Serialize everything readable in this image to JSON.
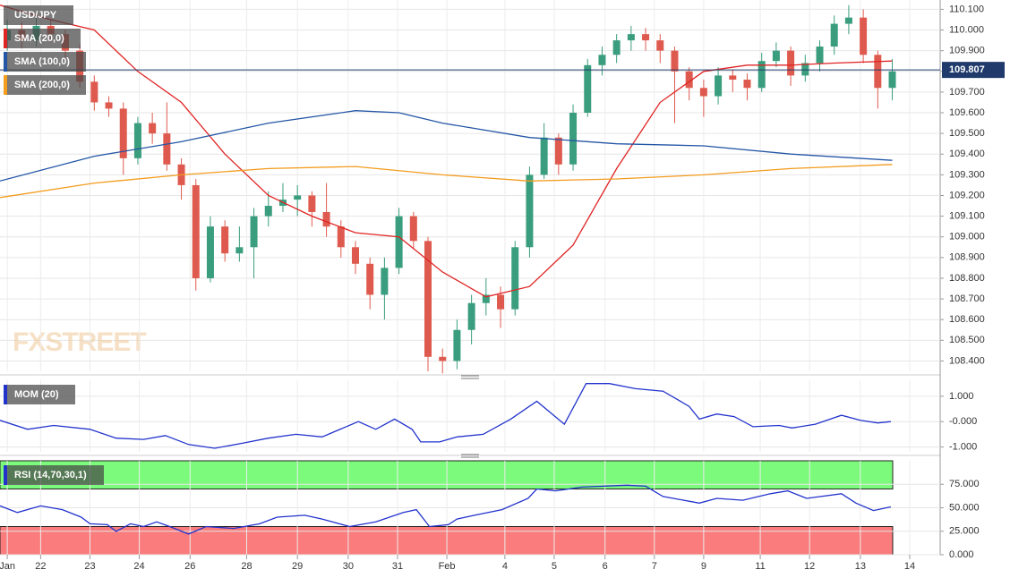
{
  "chart_data": [
    {
      "type": "candlestick",
      "name": "USD/JPY",
      "up_color": "#3a9d7e",
      "down_color": "#df5a4e",
      "grid": true,
      "xlim": [
        -0.5,
        64.3
      ],
      "ylim": [
        108.35,
        110.145
      ],
      "watermark": "FXSTREET",
      "last_price": 109.807,
      "last_price_color": "#1f3a6b",
      "open": [
        109.95,
        110.0,
        109.95,
        110.02,
        109.98,
        109.9,
        109.75,
        109.65,
        109.62,
        109.38,
        109.55,
        109.5,
        109.35,
        109.25,
        108.8,
        109.05,
        108.92,
        108.95,
        109.1,
        109.15,
        109.18,
        109.2,
        109.12,
        109.05,
        108.95,
        108.87,
        108.72,
        108.85,
        109.1,
        108.98,
        108.42,
        108.4,
        108.55,
        108.68,
        108.72,
        108.65,
        108.95,
        109.3,
        109.48,
        109.35,
        109.6,
        109.83,
        109.88,
        109.95,
        109.98,
        109.95,
        109.9,
        109.8,
        109.72,
        109.68,
        109.78,
        109.76,
        109.72,
        109.85,
        109.9,
        109.78,
        109.84,
        109.92,
        110.03,
        110.06,
        109.88,
        109.72
      ],
      "high": [
        110.05,
        110.04,
        110.07,
        110.05,
        110.0,
        109.93,
        109.78,
        109.68,
        109.65,
        109.58,
        109.6,
        109.65,
        109.38,
        109.28,
        109.1,
        109.08,
        109.05,
        109.14,
        109.22,
        109.26,
        109.25,
        109.22,
        109.26,
        109.08,
        108.98,
        108.9,
        108.9,
        109.14,
        109.12,
        109.0,
        108.46,
        108.6,
        108.72,
        108.8,
        108.76,
        108.98,
        109.34,
        109.55,
        109.5,
        109.64,
        109.86,
        109.92,
        109.98,
        110.02,
        110.01,
        109.98,
        109.92,
        109.82,
        109.76,
        109.82,
        109.81,
        109.79,
        109.89,
        109.94,
        109.92,
        109.88,
        109.95,
        110.07,
        110.12,
        110.1,
        109.9,
        109.86
      ],
      "low": [
        109.9,
        109.91,
        109.92,
        109.94,
        109.86,
        109.72,
        109.61,
        109.58,
        109.3,
        109.35,
        109.45,
        109.32,
        109.18,
        108.74,
        108.78,
        108.88,
        108.88,
        108.8,
        109.05,
        109.12,
        109.1,
        109.05,
        109.0,
        108.9,
        108.82,
        108.65,
        108.6,
        108.82,
        108.94,
        108.35,
        108.34,
        108.36,
        108.48,
        108.62,
        108.56,
        108.62,
        108.9,
        109.28,
        109.3,
        109.32,
        109.58,
        109.78,
        109.84,
        109.9,
        109.9,
        109.84,
        109.55,
        109.66,
        109.58,
        109.64,
        109.7,
        109.66,
        109.7,
        109.82,
        109.73,
        109.75,
        109.8,
        109.88,
        109.98,
        109.84,
        109.62,
        109.66
      ],
      "close": [
        110.0,
        109.95,
        110.02,
        109.98,
        109.9,
        109.75,
        109.65,
        109.62,
        109.38,
        109.55,
        109.5,
        109.35,
        109.25,
        108.8,
        109.05,
        108.92,
        108.95,
        109.1,
        109.15,
        109.18,
        109.2,
        109.12,
        109.05,
        108.95,
        108.87,
        108.72,
        108.85,
        109.1,
        108.98,
        108.42,
        108.4,
        108.55,
        108.68,
        108.72,
        108.65,
        108.95,
        109.3,
        109.48,
        109.35,
        109.6,
        109.83,
        109.88,
        109.95,
        109.98,
        109.95,
        109.9,
        109.8,
        109.72,
        109.68,
        109.78,
        109.76,
        109.72,
        109.85,
        109.9,
        109.78,
        109.84,
        109.92,
        110.03,
        110.06,
        109.88,
        109.72,
        109.8
      ],
      "series": [
        {
          "name": "SMA (20,0)",
          "color": "#e02424",
          "x": [
            -0.5,
            3,
            6,
            9,
            12,
            15,
            18,
            21,
            24,
            27,
            30,
            33,
            36,
            39,
            42,
            45,
            48,
            51,
            54,
            57,
            61
          ],
          "values": [
            110.12,
            110.05,
            110.0,
            109.8,
            109.65,
            109.4,
            109.2,
            109.1,
            109.02,
            109.0,
            108.83,
            108.71,
            108.76,
            108.96,
            109.33,
            109.65,
            109.8,
            109.83,
            109.83,
            109.84,
            109.85
          ]
        },
        {
          "name": "SMA (100,0)",
          "color": "#2456a6",
          "x": [
            -0.5,
            6,
            12,
            18,
            24,
            27,
            30,
            36,
            42,
            48,
            54,
            61
          ],
          "values": [
            109.27,
            109.39,
            109.46,
            109.55,
            109.61,
            109.6,
            109.55,
            109.48,
            109.45,
            109.44,
            109.4,
            109.37
          ]
        },
        {
          "name": "SMA (200,0)",
          "color": "#f39c1e",
          "x": [
            -0.5,
            6,
            12,
            18,
            24,
            30,
            36,
            42,
            48,
            54,
            61
          ],
          "values": [
            109.19,
            109.26,
            109.3,
            109.33,
            109.34,
            109.3,
            109.27,
            109.28,
            109.3,
            109.33,
            109.35
          ]
        }
      ],
      "yticks": [
        {
          "value": 110.1,
          "label": "110.100"
        },
        {
          "value": 110.0,
          "label": "110.000"
        },
        {
          "value": 109.9,
          "label": "109.900"
        },
        {
          "value": 109.8,
          "label": "109.800"
        },
        {
          "value": 109.7,
          "label": "109.700"
        },
        {
          "value": 109.6,
          "label": "109.600"
        },
        {
          "value": 109.5,
          "label": "109.500"
        },
        {
          "value": 109.4,
          "label": "109.400"
        },
        {
          "value": 109.3,
          "label": "109.300"
        },
        {
          "value": 109.2,
          "label": "109.200"
        },
        {
          "value": 109.1,
          "label": "109.100"
        },
        {
          "value": 109.0,
          "label": "109.000"
        },
        {
          "value": 108.9,
          "label": "108.900"
        },
        {
          "value": 108.8,
          "label": "108.800"
        },
        {
          "value": 108.7,
          "label": "108.700"
        },
        {
          "value": 108.6,
          "label": "108.600"
        },
        {
          "value": 108.5,
          "label": "108.500"
        },
        {
          "value": 108.4,
          "label": "108.400"
        }
      ]
    },
    {
      "type": "line",
      "grid": true,
      "xlim": [
        -0.5,
        64.3
      ],
      "ylim": [
        -1.19,
        1.63
      ],
      "series": [
        {
          "name": "MOM (20)",
          "color": "#2233cc",
          "x": [
            -0.5,
            1.4,
            3.2,
            5.7,
            7.5,
            9.4,
            10.9,
            12.5,
            14.3,
            16.2,
            18,
            19.9,
            21.7,
            24.2,
            25.4,
            26.7,
            27.9,
            28.5,
            29.8,
            31,
            32.8,
            34.7,
            36.5,
            38.4,
            39.9,
            41.5,
            43.3,
            45.2,
            47,
            47.7,
            48.9,
            50.1,
            51.4,
            53.2,
            54.1,
            55.7,
            57.5,
            58.8,
            60,
            60.9
          ],
          "values": [
            0.05,
            -0.3,
            -0.15,
            -0.3,
            -0.65,
            -0.7,
            -0.55,
            -0.9,
            -1.05,
            -0.85,
            -0.65,
            -0.5,
            -0.6,
            0.0,
            -0.3,
            0.1,
            -0.3,
            -0.8,
            -0.8,
            -0.6,
            -0.5,
            0.1,
            0.8,
            -0.1,
            1.5,
            1.5,
            1.3,
            1.2,
            0.6,
            0.1,
            0.3,
            0.2,
            -0.2,
            -0.15,
            -0.25,
            -0.1,
            0.25,
            0.05,
            -0.05,
            0.0
          ]
        }
      ],
      "yticks": [
        {
          "value": 1,
          "label": "1.000"
        },
        {
          "value": 0,
          "label": "-0.000"
        },
        {
          "value": -1,
          "label": "-1.000"
        }
      ]
    },
    {
      "type": "line",
      "grid": true,
      "xlim": [
        -0.5,
        64.3
      ],
      "ylim": [
        0,
        100
      ],
      "overbought": 70,
      "oversold": 30,
      "overbought_color": "#7cfa7c",
      "oversold_color": "#fa7c7c",
      "series": [
        {
          "name": "RSI (14,70,30,1)",
          "color": "#2233cc",
          "x": [
            -0.5,
            0.7,
            2.3,
            3.8,
            5.1,
            5.7,
            6.9,
            7.5,
            8.5,
            9.4,
            10.3,
            11.2,
            12.5,
            13.7,
            15.6,
            17.4,
            18.6,
            20.5,
            21.7,
            23.6,
            25.4,
            27.3,
            28.2,
            29.1,
            30.4,
            31,
            32.2,
            34.1,
            35.9,
            36.5,
            37.8,
            39.6,
            42.7,
            44,
            45.2,
            47.7,
            48.9,
            50.7,
            52.6,
            53.8,
            55.1,
            57.5,
            58.5,
            59.7,
            60.9
          ],
          "values": [
            52,
            45,
            52,
            48,
            40,
            33,
            32,
            25,
            33,
            30,
            35,
            30,
            22,
            30,
            28,
            33,
            40,
            42,
            38,
            30,
            35,
            45,
            48,
            30,
            32,
            38,
            42,
            48,
            60,
            70,
            68,
            72,
            74,
            73,
            62,
            55,
            60,
            58,
            65,
            68,
            60,
            65,
            55,
            47,
            51
          ]
        }
      ],
      "yticks": [
        {
          "value": 75,
          "label": "75.000"
        },
        {
          "value": 50,
          "label": "50.000"
        },
        {
          "value": 25,
          "label": "25.000"
        },
        {
          "value": 0,
          "label": "0.000"
        }
      ],
      "xticks": [
        {
          "value": 0,
          "label": "Jan"
        },
        {
          "value": 2.3,
          "label": "22"
        },
        {
          "value": 5.7,
          "label": "23"
        },
        {
          "value": 9.1,
          "label": "24"
        },
        {
          "value": 12.6,
          "label": "26"
        },
        {
          "value": 16.5,
          "label": "28"
        },
        {
          "value": 20,
          "label": "29"
        },
        {
          "value": 23.5,
          "label": "30"
        },
        {
          "value": 26.9,
          "label": "31"
        },
        {
          "value": 30.3,
          "label": "Feb"
        },
        {
          "value": 34.3,
          "label": "4"
        },
        {
          "value": 37.7,
          "label": "5"
        },
        {
          "value": 41.2,
          "label": "6"
        },
        {
          "value": 44.6,
          "label": "7"
        },
        {
          "value": 48,
          "label": "9"
        },
        {
          "value": 51.9,
          "label": "11"
        },
        {
          "value": 55.3,
          "label": "12"
        },
        {
          "value": 58.8,
          "label": "13"
        },
        {
          "value": 62.2,
          "label": "14"
        }
      ]
    }
  ]
}
